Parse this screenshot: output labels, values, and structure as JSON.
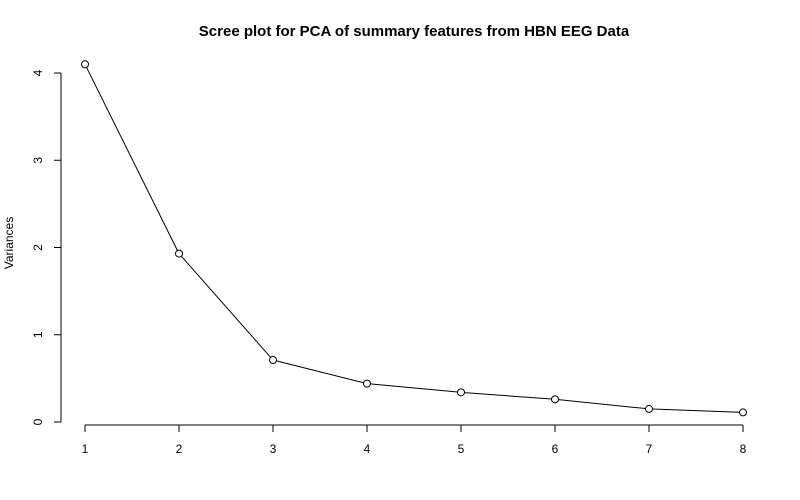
{
  "chart_data": {
    "type": "line",
    "title": "Scree plot for PCA of summary features from HBN EEG Data",
    "xlabel": "",
    "ylabel": "Variances",
    "x": [
      1,
      2,
      3,
      4,
      5,
      6,
      7,
      8
    ],
    "series": [
      {
        "values": [
          4.1,
          1.93,
          0.71,
          0.44,
          0.34,
          0.26,
          0.15,
          0.11
        ]
      }
    ],
    "xlim": [
      1,
      8
    ],
    "ylim": [
      0,
      4
    ],
    "x_ticks": [
      "1",
      "2",
      "3",
      "4",
      "5",
      "6",
      "7",
      "8"
    ],
    "y_ticks": [
      "0",
      "1",
      "2",
      "3",
      "4"
    ],
    "grid": false,
    "marker": "open-circle",
    "line_color": "#000000",
    "background": "#ffffff"
  }
}
